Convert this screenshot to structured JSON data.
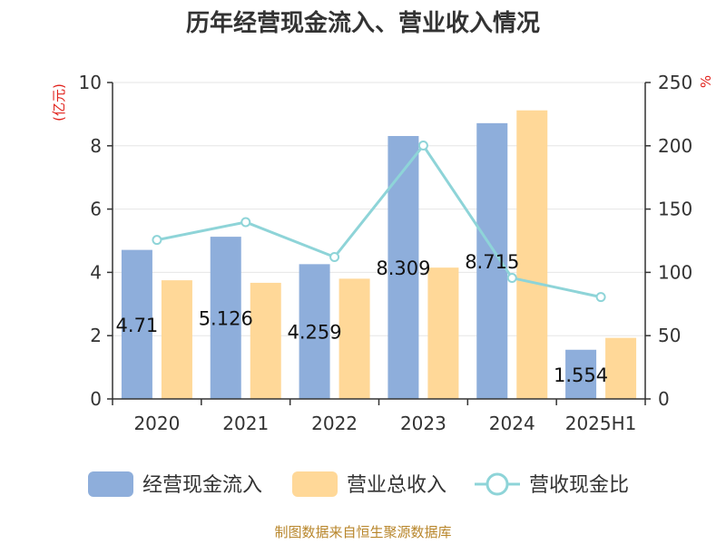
{
  "chart_data": {
    "type": "bar",
    "title": "历年经营现金流入、营业收入情况",
    "categories": [
      "2020",
      "2021",
      "2022",
      "2023",
      "2024",
      "2025H1"
    ],
    "y_left": {
      "unit": "(亿元)",
      "range": [
        0,
        10
      ],
      "ticks": [
        "0",
        "2",
        "4",
        "6",
        "8",
        "10"
      ]
    },
    "y_right": {
      "unit": "%",
      "range": [
        0,
        250
      ],
      "ticks": [
        "0",
        "50",
        "100",
        "150",
        "200",
        "250"
      ]
    },
    "grid": true,
    "legend_position": "bottom",
    "series": [
      {
        "name": "经营现金流入",
        "type": "bar",
        "axis": "left",
        "color": "#8eaedb",
        "values": [
          4.71,
          5.126,
          4.259,
          8.309,
          8.715,
          1.554
        ],
        "labels": [
          "4.71",
          "5.126",
          "4.259",
          "8.309",
          "8.715",
          "1.554"
        ]
      },
      {
        "name": "营业总收入",
        "type": "bar",
        "axis": "left",
        "color": "#ffd898",
        "values": [
          3.75,
          3.67,
          3.8,
          4.15,
          9.12,
          1.93
        ]
      },
      {
        "name": "营收现金比",
        "type": "line",
        "axis": "right",
        "color": "#8ed4d8",
        "values": [
          125.6,
          139.7,
          112.1,
          200.2,
          95.6,
          80.5
        ]
      }
    ]
  },
  "source": "制图数据来自恒生聚源数据库"
}
